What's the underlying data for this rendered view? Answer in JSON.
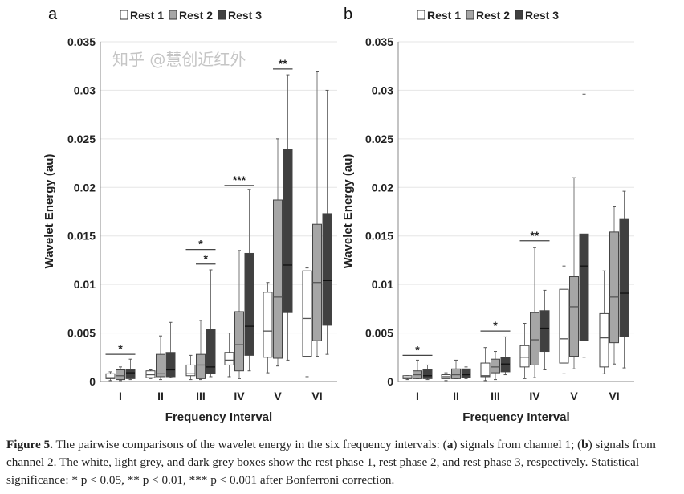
{
  "colors": {
    "rest1": "#ffffff",
    "rest2": "#a6a6a6",
    "rest3": "#404040",
    "grid": "#e6e6e6",
    "axis": "#888888"
  },
  "chart_data": [
    {
      "type": "box",
      "panel_label": "a",
      "legend": [
        "Rest 1",
        "Rest 2",
        "Rest 3"
      ],
      "legend_placement": "top",
      "xlabel": "Frequency Interval",
      "ylabel": "Wavelet Energy (au)",
      "categories": [
        "I",
        "II",
        "III",
        "IV",
        "V",
        "VI"
      ],
      "ylim": [
        0,
        0.035
      ],
      "yticks": [
        "0",
        "0.005",
        "0.01",
        "0.015",
        "0.02",
        "0.025",
        "0.03",
        "0.035"
      ],
      "grid": true,
      "series": [
        {
          "name": "Rest 1",
          "boxes": [
            [
              0.0001,
              0.0003,
              0.0004,
              0.0008,
              0.001
            ],
            [
              0.0003,
              0.0004,
              0.0007,
              0.0011,
              0.0012
            ],
            [
              0.0002,
              0.0006,
              0.0008,
              0.0017,
              0.0027
            ],
            [
              0.0005,
              0.0017,
              0.0022,
              0.003,
              0.005
            ],
            [
              0.0009,
              0.0025,
              0.0052,
              0.0092,
              0.0102
            ],
            [
              0.0005,
              0.0026,
              0.0065,
              0.0114,
              0.0117
            ]
          ]
        },
        {
          "name": "Rest 2",
          "boxes": [
            [
              0.0001,
              0.0002,
              0.0006,
              0.0012,
              0.0015
            ],
            [
              0.0002,
              0.0005,
              0.0008,
              0.0028,
              0.0047
            ],
            [
              0.0002,
              0.0003,
              0.0017,
              0.0028,
              0.0063
            ],
            [
              0.0003,
              0.0011,
              0.0038,
              0.0072,
              0.0135
            ],
            [
              0.0016,
              0.0024,
              0.0087,
              0.0187,
              0.025
            ],
            [
              0.0026,
              0.0042,
              0.0102,
              0.0162,
              0.0319
            ]
          ]
        },
        {
          "name": "Rest 3",
          "boxes": [
            [
              0.0002,
              0.0003,
              0.0009,
              0.0012,
              0.0023
            ],
            [
              0.0004,
              0.0005,
              0.0012,
              0.003,
              0.0061
            ],
            [
              0.0005,
              0.0008,
              0.0015,
              0.0054,
              0.0115
            ],
            [
              0.0011,
              0.0027,
              0.0057,
              0.0132,
              0.0198
            ],
            [
              0.0022,
              0.0071,
              0.012,
              0.0239,
              0.0316
            ],
            [
              0.0028,
              0.0058,
              0.0104,
              0.0173,
              0.03
            ]
          ]
        }
      ],
      "significance": [
        {
          "category": "I",
          "from": "Rest 1",
          "to": "Rest 3",
          "label": "*",
          "y": 0.0028
        },
        {
          "category": "III",
          "from": "Rest 1",
          "to": "Rest 3",
          "label": "*",
          "y": 0.0136
        },
        {
          "category": "III",
          "from": "Rest 2",
          "to": "Rest 3",
          "label": "*",
          "y": 0.0121
        },
        {
          "category": "IV",
          "from": "Rest 1",
          "to": "Rest 3",
          "label": "***",
          "y": 0.0202
        },
        {
          "category": "V",
          "from": "Rest 2",
          "to": "Rest 3",
          "label": "**",
          "y": 0.0322
        }
      ]
    },
    {
      "type": "box",
      "panel_label": "b",
      "legend": [
        "Rest 1",
        "Rest 2",
        "Rest 3"
      ],
      "legend_placement": "top",
      "xlabel": "Frequency Interval",
      "ylabel": "Wavelet Energy (au)",
      "categories": [
        "I",
        "II",
        "III",
        "IV",
        "V",
        "VI"
      ],
      "ylim": [
        0,
        0.035
      ],
      "yticks": [
        "0",
        "0.005",
        "0.01",
        "0.015",
        "0.02",
        "0.025",
        "0.03",
        "0.035"
      ],
      "grid": true,
      "series": [
        {
          "name": "Rest 1",
          "boxes": [
            [
              0.0002,
              0.0003,
              0.0004,
              0.0006,
              0.0006
            ],
            [
              0.0001,
              0.0003,
              0.0005,
              0.0007,
              0.0009
            ],
            [
              0.0001,
              0.0005,
              0.0006,
              0.0019,
              0.0035
            ],
            [
              0.0003,
              0.0015,
              0.0025,
              0.0037,
              0.006
            ],
            [
              0.0008,
              0.0019,
              0.0044,
              0.0095,
              0.0119
            ],
            [
              0.0008,
              0.0015,
              0.0045,
              0.007,
              0.0114
            ]
          ]
        },
        {
          "name": "Rest 2",
          "boxes": [
            [
              0.0003,
              0.0003,
              0.0007,
              0.0011,
              0.0022
            ],
            [
              0.0003,
              0.0003,
              0.0007,
              0.0013,
              0.0022
            ],
            [
              0.0002,
              0.0009,
              0.0015,
              0.0023,
              0.0031
            ],
            [
              0.0004,
              0.0017,
              0.0043,
              0.0071,
              0.0138
            ],
            [
              0.0013,
              0.0026,
              0.0077,
              0.0108,
              0.021
            ],
            [
              0.0018,
              0.004,
              0.0087,
              0.0154,
              0.018
            ]
          ]
        },
        {
          "name": "Rest 3",
          "boxes": [
            [
              0.0002,
              0.0003,
              0.0006,
              0.0012,
              0.0017
            ],
            [
              0.0003,
              0.0004,
              0.0007,
              0.0013,
              0.0015
            ],
            [
              0.0007,
              0.001,
              0.0018,
              0.0025,
              0.0046
            ],
            [
              0.0012,
              0.0031,
              0.0055,
              0.0073,
              0.0094
            ],
            [
              0.0025,
              0.0042,
              0.0119,
              0.0152,
              0.0296
            ],
            [
              0.0014,
              0.0046,
              0.0091,
              0.0167,
              0.0196
            ]
          ]
        }
      ],
      "significance": [
        {
          "category": "I",
          "from": "Rest 1",
          "to": "Rest 3",
          "label": "*",
          "y": 0.0027
        },
        {
          "category": "III",
          "from": "Rest 1",
          "to": "Rest 3",
          "label": "*",
          "y": 0.0052
        },
        {
          "category": "IV",
          "from": "Rest 1",
          "to": "Rest 3",
          "label": "**",
          "y": 0.0145
        }
      ]
    }
  ],
  "caption": {
    "figure_label": "Figure 5.",
    "text_1": " The pairwise comparisons of the wavelet energy in the six frequency intervals: (",
    "a": "a",
    "text_2": ") signals from channel 1; (",
    "b": "b",
    "text_3": ") signals from channel 2. The white, light grey, and dark grey boxes show the rest phase 1, rest phase 2, and rest phase 3, respectively. Statistical significance: * p < 0.05, ** p < 0.01, *** p < 0.001 after Bonferroni correction."
  },
  "watermark": "知乎 @慧创近红外"
}
